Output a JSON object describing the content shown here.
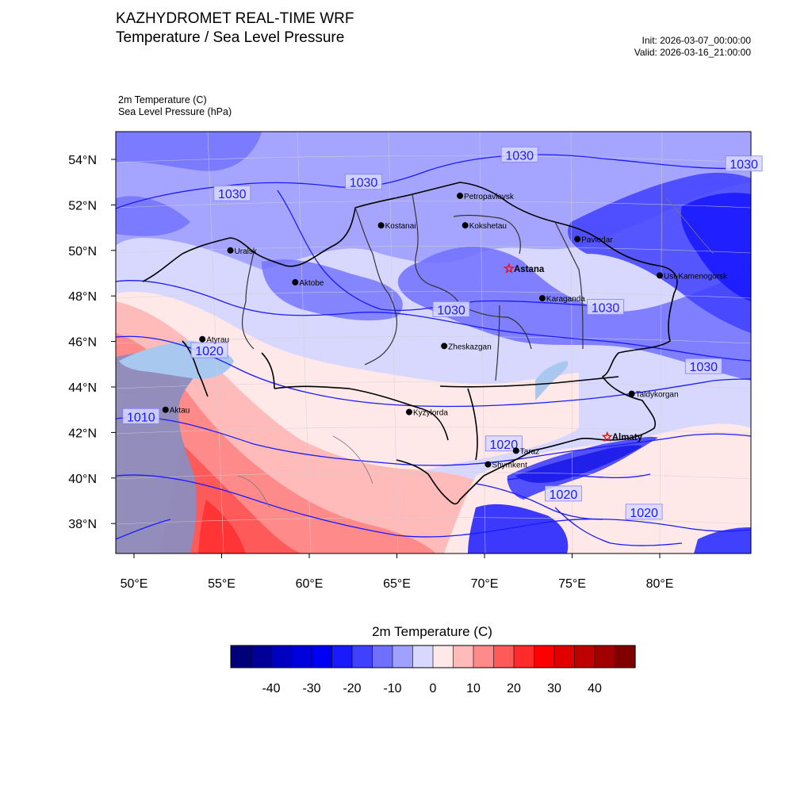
{
  "header": {
    "title_line1": "KAZHYDROMET REAL-TIME WRF",
    "title_line2": "Temperature / Sea Level Pressure",
    "init": "Init: 2026-03-07_00:00:00",
    "valid": "Valid: 2026-03-16_21:00:00"
  },
  "fields": {
    "temp": "2m Temperature   (C)",
    "slp": "Sea Level Pressure   (hPa)"
  },
  "axes": {
    "lat_labels": [
      {
        "lat": 54,
        "text": "54°N"
      },
      {
        "lat": 52,
        "text": "52°N"
      },
      {
        "lat": 50,
        "text": "50°N"
      },
      {
        "lat": 48,
        "text": "48°N"
      },
      {
        "lat": 46,
        "text": "46°N"
      },
      {
        "lat": 44,
        "text": "44°N"
      },
      {
        "lat": 42,
        "text": "42°N"
      },
      {
        "lat": 40,
        "text": "40°N"
      },
      {
        "lat": 38,
        "text": "38°N"
      }
    ],
    "lon_labels": [
      {
        "lon": 50,
        "text": "50°E"
      },
      {
        "lon": 55,
        "text": "55°E"
      },
      {
        "lon": 60,
        "text": "60°E"
      },
      {
        "lon": 65,
        "text": "65°E"
      },
      {
        "lon": 70,
        "text": "70°E"
      },
      {
        "lon": 75,
        "text": "75°E"
      },
      {
        "lon": 80,
        "text": "80°E"
      }
    ]
  },
  "cities": [
    {
      "name": "Petropavlovsk",
      "lon": 68.6,
      "lat": 52.4,
      "capital": false
    },
    {
      "name": "Kostanai",
      "lon": 64.1,
      "lat": 51.1,
      "capital": false
    },
    {
      "name": "Kokshetau",
      "lon": 68.9,
      "lat": 51.1,
      "capital": false
    },
    {
      "name": "Pavlodar",
      "lon": 75.3,
      "lat": 50.5,
      "capital": false
    },
    {
      "name": "Uralsk",
      "lon": 55.5,
      "lat": 50.0,
      "capital": false
    },
    {
      "name": "Astana",
      "lon": 71.4,
      "lat": 49.2,
      "capital": true
    },
    {
      "name": "Aktobe",
      "lon": 59.2,
      "lat": 48.6,
      "capital": false
    },
    {
      "name": "Ust-Kamenogorsk",
      "lon": 80.0,
      "lat": 48.9,
      "capital": false
    },
    {
      "name": "Karaganda",
      "lon": 73.3,
      "lat": 47.9,
      "capital": false
    },
    {
      "name": "Atyrau",
      "lon": 53.9,
      "lat": 46.1,
      "capital": false
    },
    {
      "name": "Zheskazgan",
      "lon": 67.7,
      "lat": 45.8,
      "capital": false
    },
    {
      "name": "Taldykorgan",
      "lon": 78.4,
      "lat": 43.7,
      "capital": false
    },
    {
      "name": "Kyzylorda",
      "lon": 65.7,
      "lat": 42.9,
      "capital": false
    },
    {
      "name": "Aktau",
      "lon": 51.8,
      "lat": 43.0,
      "capital": false
    },
    {
      "name": "Almaty",
      "lon": 77.0,
      "lat": 41.8,
      "capital": true
    },
    {
      "name": "Taraz",
      "lon": 71.8,
      "lat": 41.2,
      "capital": false
    },
    {
      "name": "Shymkent",
      "lon": 70.2,
      "lat": 40.6,
      "capital": false
    }
  ],
  "isobars": [
    {
      "text": "1030",
      "lon": 55.6,
      "lat": 52.5
    },
    {
      "text": "1030",
      "lon": 63.1,
      "lat": 53.0
    },
    {
      "text": "1030",
      "lon": 72.0,
      "lat": 54.2
    },
    {
      "text": "1030",
      "lon": 84.8,
      "lat": 53.8
    },
    {
      "text": "1030",
      "lon": 68.1,
      "lat": 47.4
    },
    {
      "text": "1030",
      "lon": 76.9,
      "lat": 47.5
    },
    {
      "text": "1030",
      "lon": 82.5,
      "lat": 44.9
    },
    {
      "text": "1020",
      "lon": 54.3,
      "lat": 45.6
    },
    {
      "text": "1010",
      "lon": 50.4,
      "lat": 42.7
    },
    {
      "text": "1020",
      "lon": 71.1,
      "lat": 41.5
    },
    {
      "text": "1020",
      "lon": 74.5,
      "lat": 39.3
    },
    {
      "text": "1020",
      "lon": 79.1,
      "lat": 38.5
    }
  ],
  "colorbar": {
    "title": "2m Temperature  (C)",
    "colors": [
      "#00007a",
      "#000099",
      "#0000c0",
      "#0000dd",
      "#0000f5",
      "#1a1aff",
      "#4040ff",
      "#7070ff",
      "#a0a0ff",
      "#d8d8ff",
      "#ffe8e8",
      "#ffbaba",
      "#ff8a8a",
      "#ff5a5a",
      "#ff2a2a",
      "#ff0000",
      "#e00000",
      "#c00000",
      "#a00000",
      "#800000"
    ],
    "ticks": [
      "-40",
      "-30",
      "-20",
      "-10",
      "0",
      "10",
      "20",
      "30",
      "40"
    ]
  }
}
